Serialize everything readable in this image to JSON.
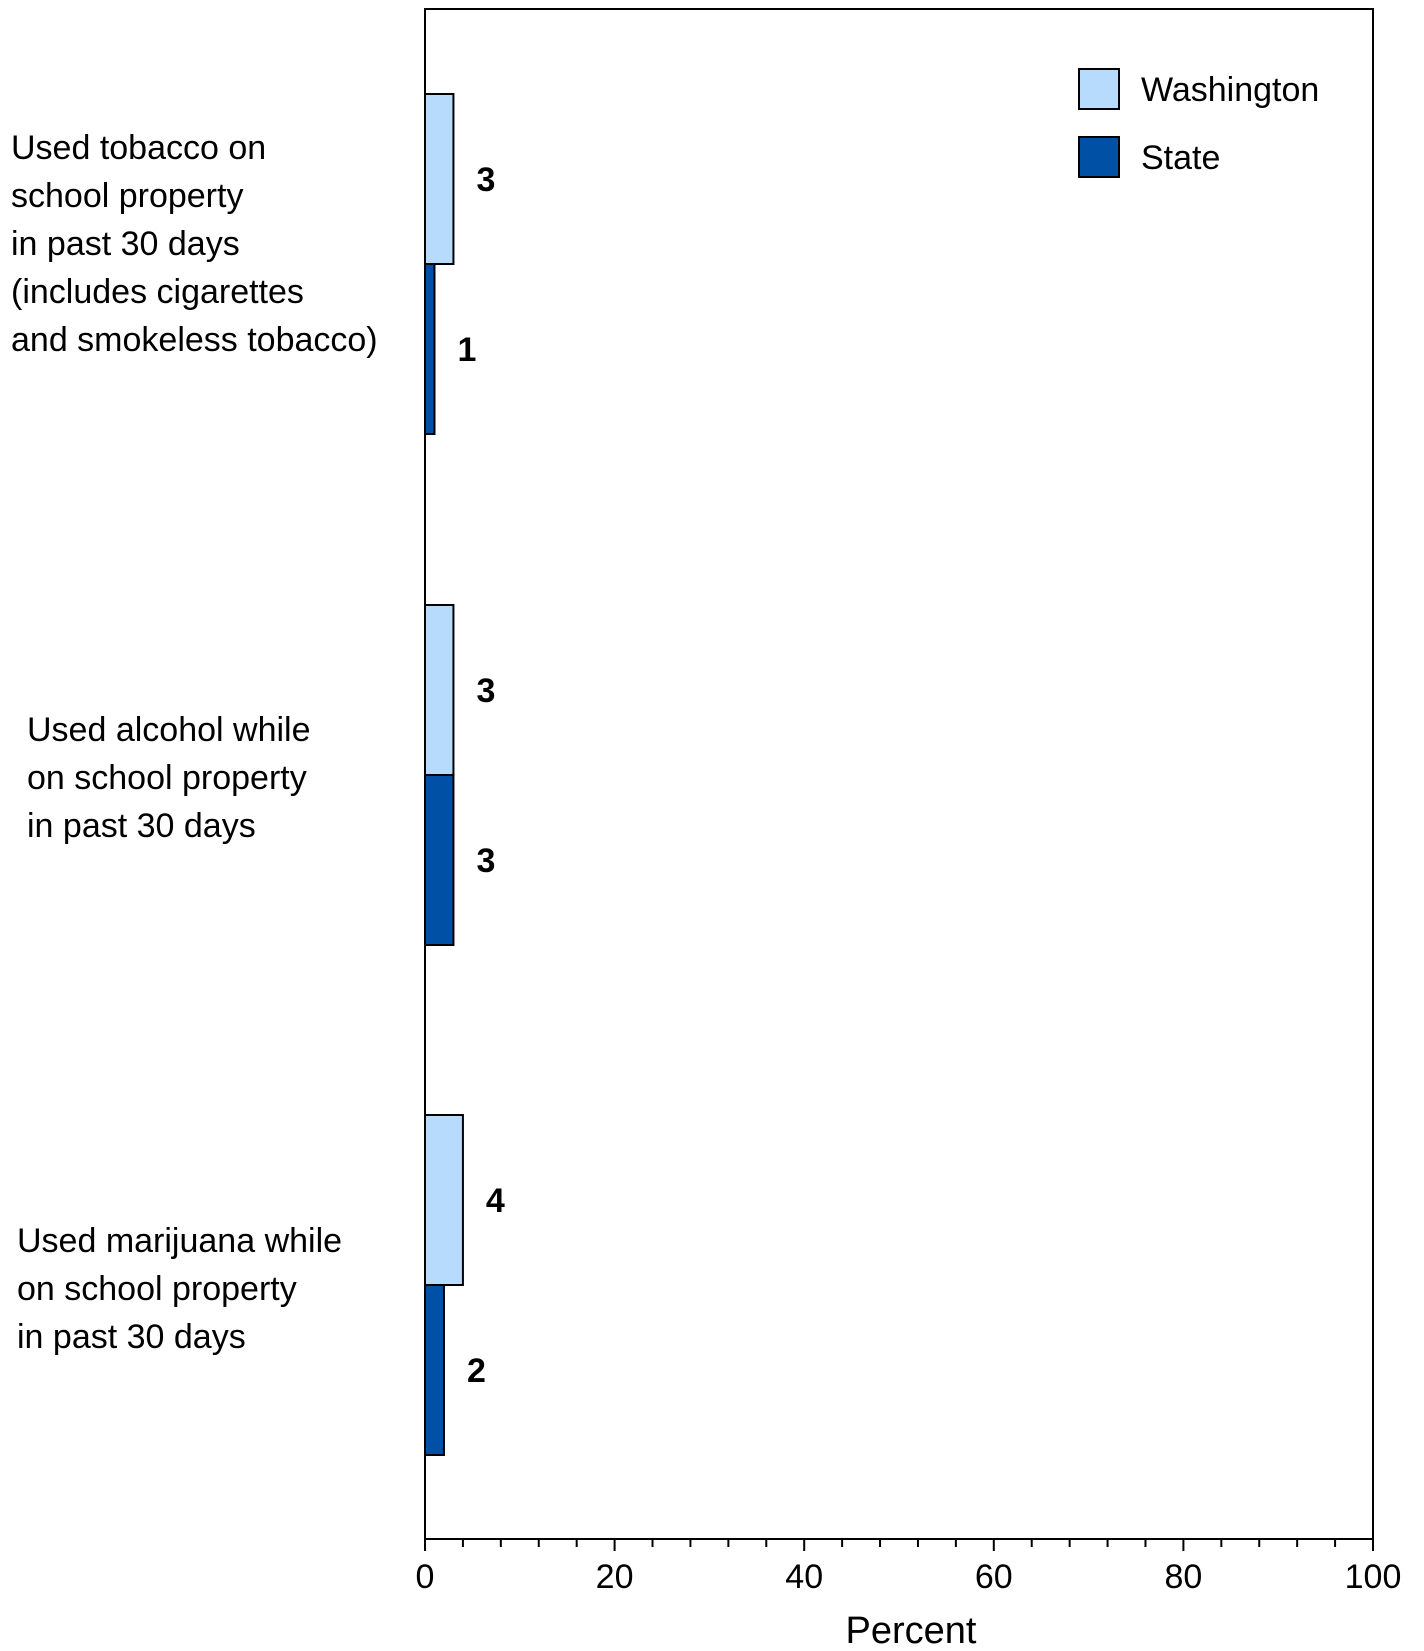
{
  "chart_data": {
    "type": "bar",
    "orientation": "horizontal",
    "categories": [
      [
        "Used tobacco on",
        "school property",
        "in past 30 days",
        "(includes cigarettes",
        "and smokeless tobacco)"
      ],
      [
        "Used alcohol while",
        "on school property",
        "in past 30 days"
      ],
      [
        "Used marijuana while",
        "on school property",
        "in past 30 days"
      ]
    ],
    "series": [
      {
        "name": "Washington",
        "color": "#b7dbfd",
        "values": [
          3,
          3,
          4
        ]
      },
      {
        "name": "State",
        "color": "#0050a5",
        "values": [
          1,
          3,
          2
        ]
      }
    ],
    "xlabel": "Percent",
    "xlim": [
      0,
      100
    ],
    "xticks": [
      0,
      20,
      40,
      60,
      80,
      100
    ],
    "legend_position": "top-right"
  }
}
